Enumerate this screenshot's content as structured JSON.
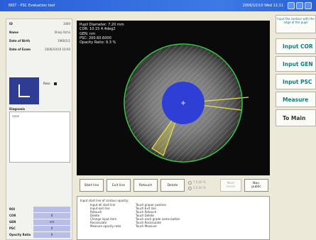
{
  "window": {
    "title": "NIST - PSC Evaluation tool",
    "right_text": "2006/10/10 Wed 11:11",
    "controls": [
      "minimize-icon",
      "maximize-icon",
      "close-icon"
    ]
  },
  "patient": {
    "fields": [
      {
        "label": "ID",
        "value": "1000"
      },
      {
        "label": "Name",
        "value": "Shinji Ochii"
      },
      {
        "label": "Date of Birth",
        "value": "1960/1/1"
      },
      {
        "label": "Date of Exam",
        "value": "2006/10/10 10:00"
      }
    ],
    "reso_label": "Reso",
    "diagnosis_label": "Diagnosis",
    "diagnosis_text": "none",
    "measures": [
      {
        "label": "ROI",
        "value": ""
      },
      {
        "label": "COR",
        "value": "0"
      },
      {
        "label": "GEN",
        "value": "nm"
      },
      {
        "label": "PSC",
        "value": "0"
      },
      {
        "label": "Opacity Ratio",
        "value": "0"
      }
    ]
  },
  "overlay": {
    "lines": [
      "Pupil Diameter: 7.20 mm",
      "COR: 10.15 4.4deg2",
      "GEN: nm",
      "PSC: 200.60.6000",
      "Opacity Ratio: 9.3 %"
    ]
  },
  "right_panel": {
    "hint": "Input the contour with the edge of the pupil",
    "buttons": [
      "Input COR",
      "Input GEN",
      "Input PSC",
      "Measure",
      "To Main"
    ]
  },
  "toolbar": {
    "start_line": "Start line",
    "end_line": "Exit line",
    "retouch": "Retouch",
    "delete": "Delete",
    "radio_1": "T 0.00 %",
    "radio_2": "S 0.00 %",
    "next": "Next\nmeas",
    "nav": "Nav.\npublic"
  },
  "instructions": {
    "head": "Input start line of contour opacity:",
    "rows": [
      {
        "a": "Input all start line",
        "b": "Touch proper position"
      },
      {
        "a": "Input exit line",
        "b": "Touch Exit line"
      },
      {
        "a": "Retouch",
        "b": "Touch Retouch"
      },
      {
        "a": "Delete",
        "b": "Touch Delete"
      },
      {
        "a": "Change input item",
        "b": "Touch each grade name button"
      },
      {
        "a": "Recalculate",
        "b": "Touch Recalculate"
      },
      {
        "a": "Measure opacity ratio",
        "b": "Touch Measure"
      }
    ]
  },
  "colors": {
    "titlebar": "#2a5fd8",
    "accent_text": "#0e7f7f",
    "roi_circle": "#3cc24a",
    "pupil_blue": "#2f3fd6",
    "sector_yellow": "#e8e050"
  }
}
